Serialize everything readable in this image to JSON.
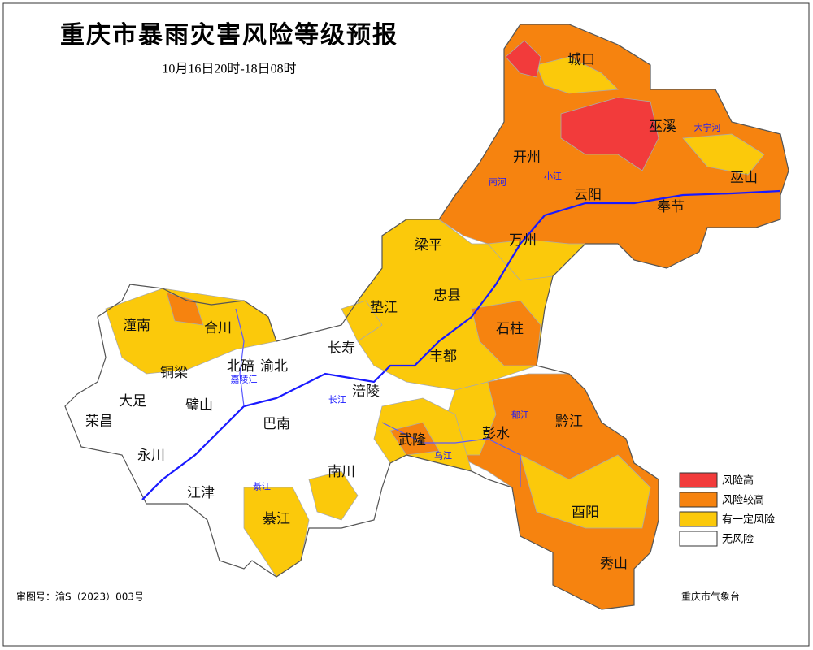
{
  "title": "重庆市暴雨灾害风险等级预报",
  "subtitle": "10月16日20时-18日08时",
  "legend": [
    {
      "label": "风险高",
      "color": "#f23b3b"
    },
    {
      "label": "风险较高",
      "color": "#f6830f"
    },
    {
      "label": "有一定风险",
      "color": "#fbc90b"
    },
    {
      "label": "无风险",
      "color": "#ffffff"
    }
  ],
  "districts": [
    "城口",
    "巫溪",
    "开州",
    "云阳",
    "奉节",
    "巫山",
    "梁平",
    "万州",
    "忠县",
    "垫江",
    "石柱",
    "长寿",
    "丰都",
    "涪陵",
    "武隆",
    "彭水",
    "黔江",
    "酉阳",
    "秀山",
    "潼南",
    "合川",
    "铜梁",
    "北碚",
    "渝北",
    "大足",
    "璧山",
    "荣昌",
    "永川",
    "巴南",
    "江津",
    "南川",
    "綦江"
  ],
  "rivers": [
    "大宁河",
    "南河",
    "小江",
    "长江",
    "嘉陵江",
    "綦江",
    "乌江",
    "郁江"
  ],
  "footer": {
    "map_number": "审图号：渝S（2023）003号",
    "agency": "重庆市气象台"
  }
}
